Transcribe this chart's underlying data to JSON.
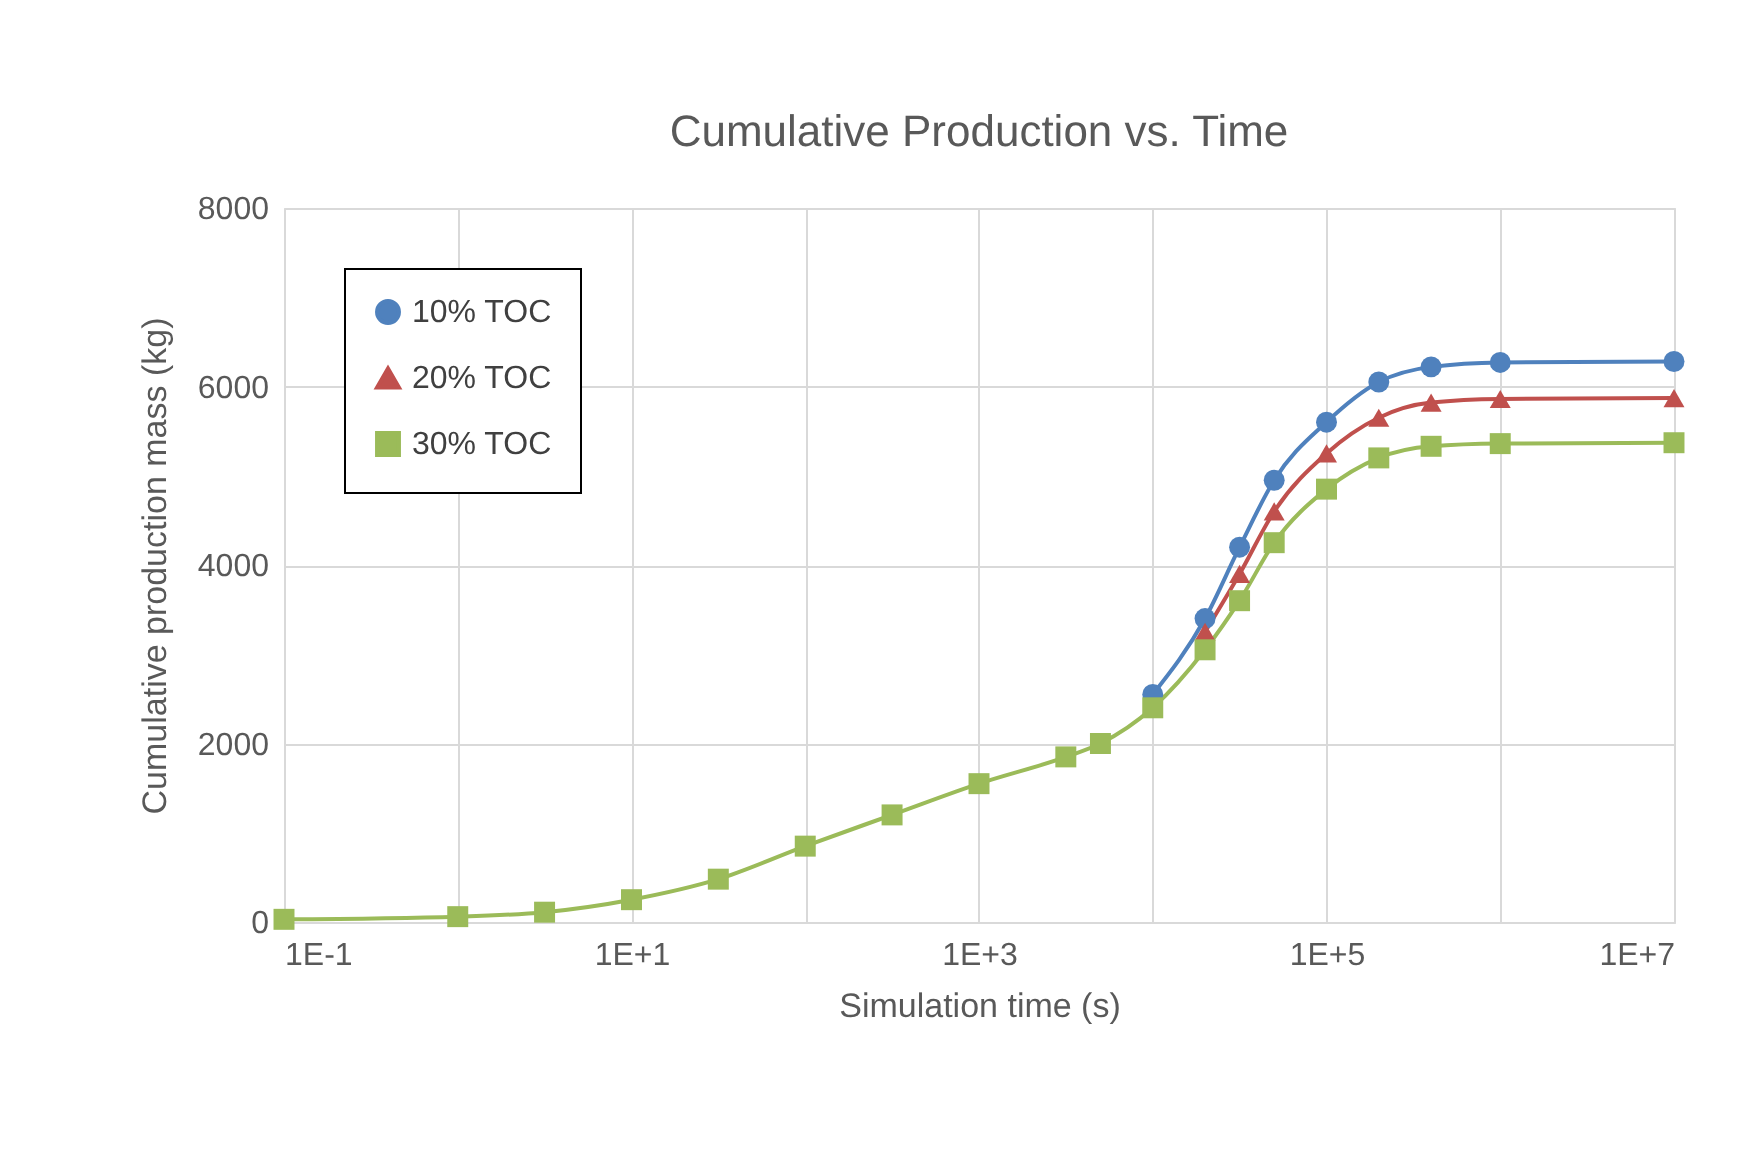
{
  "chart_data": {
    "type": "line",
    "title": "Cumulative Production vs. Time",
    "xlabel": "Simulation time (s)",
    "ylabel": "Cumulative production mass (kg)",
    "log": "x",
    "xlim": [
      0.1,
      10000000
    ],
    "xticks": [
      {
        "value": 0.1,
        "label": "1E-1"
      },
      {
        "value": 1,
        "label": null
      },
      {
        "value": 10,
        "label": "1E+1"
      },
      {
        "value": 100,
        "label": null
      },
      {
        "value": 1000,
        "label": "1E+3"
      },
      {
        "value": 10000,
        "label": null
      },
      {
        "value": 100000,
        "label": "1E+5"
      },
      {
        "value": 1000000,
        "label": null
      },
      {
        "value": 10000000,
        "label": "1E+7"
      }
    ],
    "ylim": [
      0,
      8000
    ],
    "yticks": [
      0,
      2000,
      4000,
      6000,
      8000
    ],
    "grid": true,
    "legend": "top left",
    "series": [
      {
        "name": "10% TOC",
        "color": "#4f81bd",
        "marker": "circle",
        "x": [
          10000,
          20000,
          31600,
          50000,
          100000,
          200000,
          400000,
          1000000,
          10000000
        ],
        "values": [
          2550,
          3400,
          4200,
          4950,
          5600,
          6050,
          6220,
          6270,
          6280
        ]
      },
      {
        "name": "20% TOC",
        "color": "#c0504d",
        "marker": "triangle",
        "x": [
          20000,
          31600,
          50000,
          100000,
          200000,
          400000,
          1000000,
          10000000
        ],
        "values": [
          3250,
          3900,
          4600,
          5250,
          5650,
          5820,
          5860,
          5870
        ]
      },
      {
        "name": "30% TOC",
        "color": "#9bbb59",
        "marker": "square",
        "x": [
          0.1,
          1,
          3.16,
          10,
          31.6,
          100,
          316,
          1000,
          3160,
          5000,
          10000,
          20000,
          31600,
          50000,
          100000,
          200000,
          400000,
          1000000,
          10000000
        ],
        "values": [
          30,
          60,
          110,
          250,
          480,
          850,
          1200,
          1550,
          1850,
          2000,
          2400,
          3050,
          3600,
          4250,
          4850,
          5200,
          5330,
          5360,
          5370
        ]
      }
    ]
  }
}
